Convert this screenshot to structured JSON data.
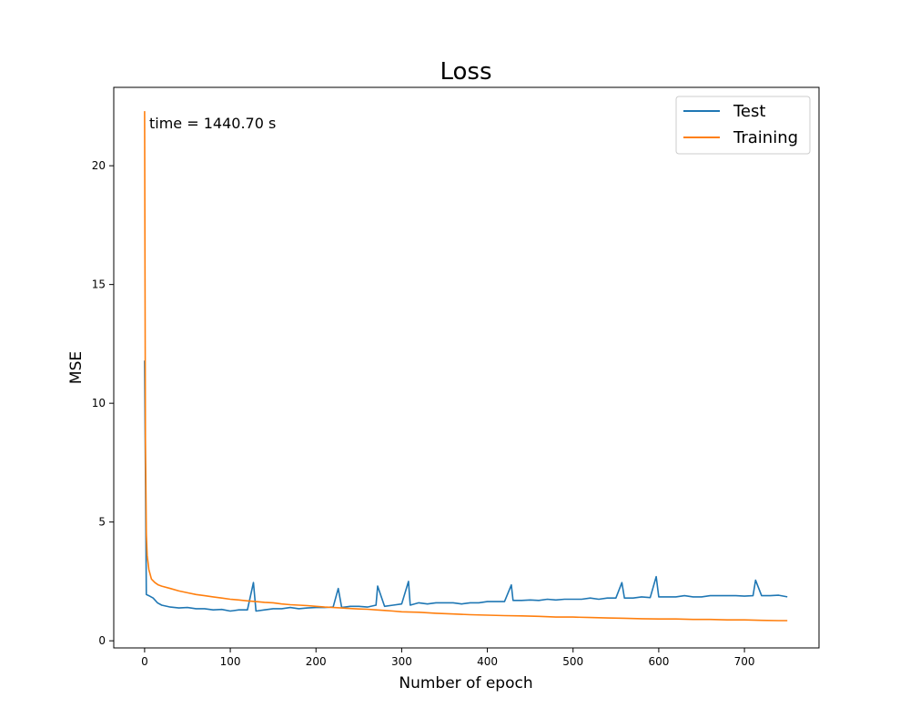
{
  "chart_data": {
    "type": "line",
    "title": "Loss",
    "xlabel": "Number of epoch",
    "ylabel": "MSE",
    "xlim": [
      -36,
      787
    ],
    "ylim": [
      -0.3,
      23.3
    ],
    "xticks": [
      0,
      100,
      200,
      300,
      400,
      500,
      600,
      700
    ],
    "yticks": [
      0,
      5,
      10,
      15,
      20
    ],
    "grid": false,
    "legend_position": "top-right",
    "annotation": "time = 1440.70 s",
    "colors": {
      "Test": "#1f77b4",
      "Training": "#ff7f0e"
    },
    "series": [
      {
        "name": "Test",
        "x": [
          0,
          2,
          5,
          10,
          15,
          20,
          30,
          40,
          50,
          60,
          70,
          80,
          90,
          100,
          110,
          120,
          127,
          130,
          140,
          150,
          160,
          170,
          180,
          190,
          200,
          210,
          220,
          226,
          230,
          240,
          250,
          260,
          270,
          272,
          280,
          290,
          300,
          308,
          310,
          320,
          330,
          340,
          350,
          360,
          370,
          380,
          390,
          400,
          410,
          420,
          428,
          430,
          440,
          450,
          460,
          470,
          480,
          490,
          500,
          510,
          520,
          530,
          540,
          550,
          557,
          560,
          570,
          580,
          590,
          597,
          600,
          610,
          620,
          630,
          640,
          650,
          660,
          670,
          680,
          690,
          700,
          710,
          713,
          720,
          730,
          740,
          750
        ],
        "y": [
          11.8,
          1.95,
          1.9,
          1.8,
          1.6,
          1.5,
          1.42,
          1.38,
          1.4,
          1.35,
          1.35,
          1.3,
          1.32,
          1.25,
          1.3,
          1.3,
          2.45,
          1.25,
          1.3,
          1.35,
          1.35,
          1.4,
          1.35,
          1.38,
          1.4,
          1.4,
          1.42,
          2.2,
          1.4,
          1.45,
          1.45,
          1.42,
          1.5,
          2.3,
          1.45,
          1.5,
          1.55,
          2.5,
          1.5,
          1.6,
          1.55,
          1.6,
          1.6,
          1.6,
          1.55,
          1.6,
          1.6,
          1.65,
          1.65,
          1.65,
          2.35,
          1.7,
          1.7,
          1.72,
          1.7,
          1.75,
          1.72,
          1.75,
          1.75,
          1.75,
          1.8,
          1.75,
          1.8,
          1.8,
          2.45,
          1.8,
          1.8,
          1.85,
          1.82,
          2.7,
          1.85,
          1.85,
          1.85,
          1.9,
          1.85,
          1.85,
          1.9,
          1.9,
          1.9,
          1.9,
          1.88,
          1.9,
          2.55,
          1.9,
          1.9,
          1.92,
          1.85
        ]
      },
      {
        "name": "Training",
        "x": [
          0,
          1,
          2,
          3,
          5,
          8,
          12,
          16,
          20,
          30,
          40,
          50,
          60,
          70,
          80,
          90,
          100,
          110,
          120,
          130,
          140,
          150,
          160,
          170,
          180,
          190,
          200,
          210,
          220,
          230,
          240,
          250,
          260,
          270,
          280,
          290,
          300,
          320,
          340,
          360,
          380,
          400,
          420,
          440,
          460,
          480,
          500,
          520,
          540,
          560,
          580,
          600,
          620,
          640,
          660,
          680,
          700,
          720,
          740,
          750
        ],
        "y": [
          22.3,
          8.5,
          4.5,
          3.6,
          3.0,
          2.6,
          2.45,
          2.35,
          2.3,
          2.2,
          2.1,
          2.02,
          1.95,
          1.9,
          1.85,
          1.8,
          1.75,
          1.72,
          1.68,
          1.65,
          1.62,
          1.6,
          1.55,
          1.52,
          1.5,
          1.48,
          1.45,
          1.42,
          1.4,
          1.38,
          1.36,
          1.34,
          1.33,
          1.3,
          1.28,
          1.25,
          1.22,
          1.2,
          1.16,
          1.13,
          1.1,
          1.08,
          1.06,
          1.05,
          1.03,
          1.0,
          1.0,
          0.98,
          0.96,
          0.95,
          0.93,
          0.92,
          0.92,
          0.9,
          0.9,
          0.88,
          0.88,
          0.86,
          0.85,
          0.85
        ]
      }
    ]
  }
}
